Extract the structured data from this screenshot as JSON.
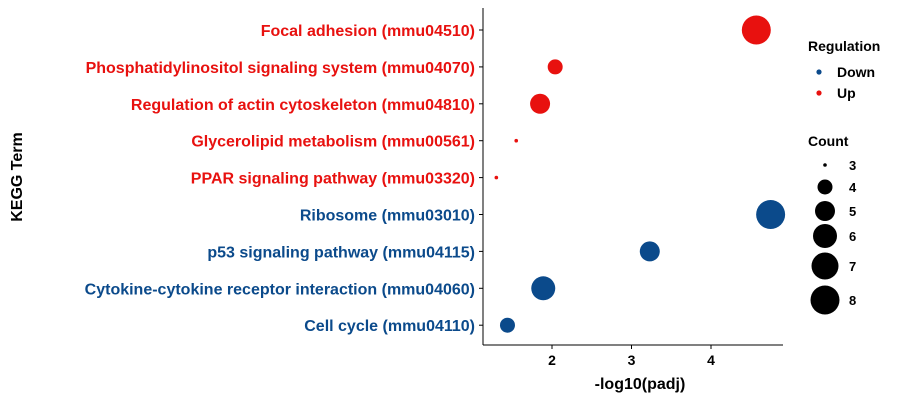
{
  "chart_data": {
    "type": "scatter",
    "xlabel": "-log10(padj)",
    "ylabel": "KEGG Term",
    "xlim": [
      1.2,
      5.0
    ],
    "xticks": [
      2,
      3,
      4
    ],
    "grid": false,
    "terms": [
      {
        "label": "Focal adhesion (mmu04510)",
        "x": 4.57,
        "count": 8,
        "regulation": "Up"
      },
      {
        "label": "Phosphatidylinositol signaling system (mmu04070)",
        "x": 2.04,
        "count": 4,
        "regulation": "Up"
      },
      {
        "label": "Regulation of actin cytoskeleton (mmu04810)",
        "x": 1.85,
        "count": 5,
        "regulation": "Up"
      },
      {
        "label": "Glycerolipid metabolism (mmu00561)",
        "x": 1.55,
        "count": 3,
        "regulation": "Up"
      },
      {
        "label": "PPAR signaling pathway (mmu03320)",
        "x": 1.3,
        "count": 3,
        "regulation": "Up"
      },
      {
        "label": "Ribosome (mmu03010)",
        "x": 4.75,
        "count": 8,
        "regulation": "Down"
      },
      {
        "label": "p53 signaling pathway (mmu04115)",
        "x": 3.23,
        "count": 5,
        "regulation": "Down"
      },
      {
        "label": "Cytokine-cytokine receptor interaction (mmu04060)",
        "x": 1.89,
        "count": 6,
        "regulation": "Down"
      },
      {
        "label": "Cell cycle (mmu04110)",
        "x": 1.44,
        "count": 4,
        "regulation": "Down"
      }
    ],
    "legend": {
      "placement": "right",
      "regulation_title": "Regulation",
      "regulation_items": [
        {
          "name": "Down",
          "color": "#0b4a8b"
        },
        {
          "name": "Up",
          "color": "#e8110f"
        }
      ],
      "count_title": "Count",
      "count_items": [
        3,
        4,
        5,
        6,
        7,
        8
      ]
    },
    "colors": {
      "Up": "#e8110f",
      "Down": "#0b4a8b"
    }
  }
}
